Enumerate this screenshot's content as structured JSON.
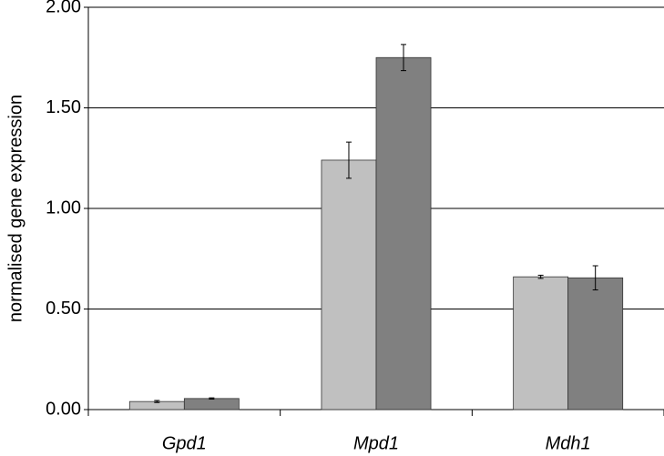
{
  "chart_data": {
    "type": "bar",
    "y_label": "normalised gene expression",
    "categories": [
      "Gpd1",
      "Mpd1",
      "Mdh1"
    ],
    "series": [
      {
        "color": "#c0c0c0",
        "values": [
          0.04,
          1.24,
          0.66
        ],
        "errors": [
          0.005,
          0.09,
          0.008
        ]
      },
      {
        "color": "#808080",
        "values": [
          0.055,
          1.75,
          0.655
        ],
        "errors": [
          0.003,
          0.065,
          0.06
        ]
      }
    ],
    "ylim": [
      0,
      2
    ],
    "yticks": [
      {
        "value": 0,
        "label": "0.00"
      },
      {
        "value": 0.5,
        "label": "0.50"
      },
      {
        "value": 1,
        "label": "1.00"
      },
      {
        "value": 1.5,
        "label": "1.50"
      },
      {
        "value": 2,
        "label": "2.00"
      }
    ],
    "grid": true
  }
}
